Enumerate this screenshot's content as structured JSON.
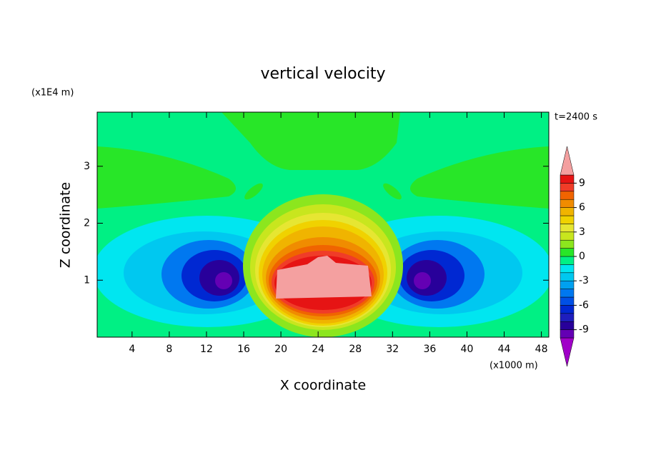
{
  "chart_data": {
    "type": "contour",
    "title": "vertical velocity",
    "x_label": "X coordinate",
    "y_label": "Z coordinate",
    "x_unit": "(x1000 m)",
    "y_unit": "(x1E4 m)",
    "annotation": "t=2400 s",
    "xlim": [
      0.25,
      48.8
    ],
    "xticks": [
      4,
      8,
      12,
      16,
      20,
      24,
      28,
      32,
      36,
      40,
      44,
      48
    ],
    "ylim": [
      0,
      3.95
    ],
    "yticks": [
      1,
      2,
      3
    ],
    "colorbar": {
      "levels": [
        -10,
        -9,
        -8,
        -7,
        -6,
        -5,
        -4,
        -3,
        -2,
        -1,
        0,
        1,
        2,
        3,
        4,
        5,
        6,
        7,
        8,
        9,
        10
      ],
      "ticks": [
        -9,
        -6,
        -3,
        0,
        3,
        6,
        9
      ],
      "colors": [
        "#a000c8",
        "#6400b4",
        "#28009a",
        "#1e1ebe",
        "#0028d2",
        "#0050e6",
        "#0078f0",
        "#00a0f0",
        "#00c8f0",
        "#00e6f0",
        "#00f084",
        "#28e628",
        "#8ce61e",
        "#c8e61e",
        "#e6e632",
        "#f0d200",
        "#f0b400",
        "#f08c00",
        "#f06400",
        "#f03c28",
        "#e61414",
        "#f4a0a0"
      ]
    }
  }
}
